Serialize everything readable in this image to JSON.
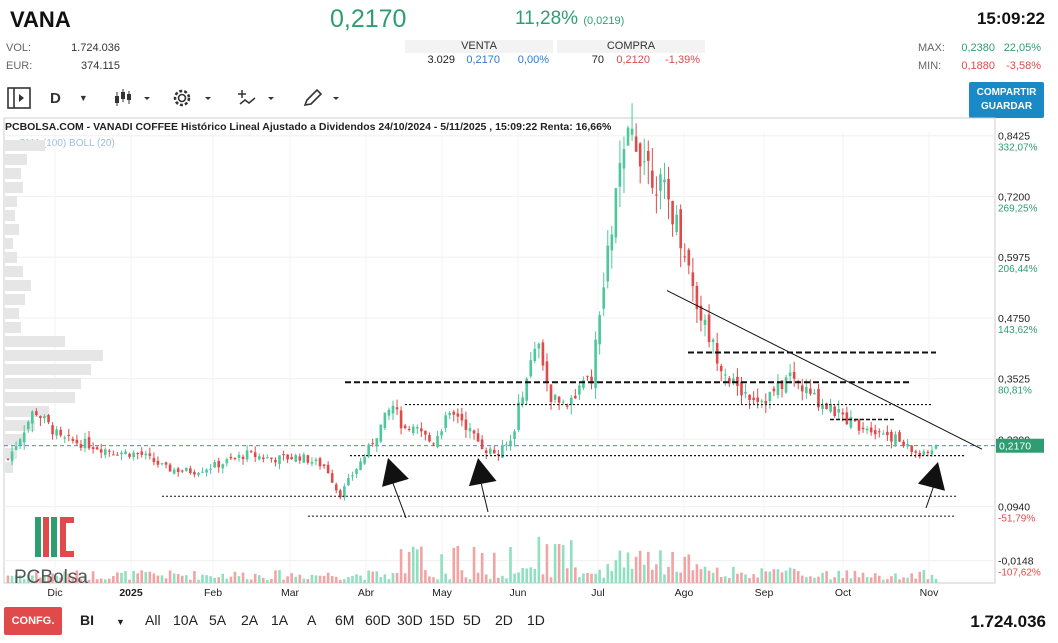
{
  "header": {
    "ticker": "VANA",
    "last_price": "0,2170",
    "change_pct": "11,28%",
    "change_abs": "(0,0219)",
    "time": "15:09:22",
    "vol_label": "VOL:",
    "vol_value": "1.724.036",
    "eur_label": "EUR:",
    "eur_value": "374.115",
    "max_label": "MAX:",
    "max_value": "0,2380",
    "max_pct": "22,05%",
    "min_label": "MIN:",
    "min_value": "0,1880",
    "min_pct": "-3,58%"
  },
  "orderbook": {
    "sell_label": "VENTA",
    "buy_label": "COMPRA",
    "sell_qty": "3.029",
    "sell_price": "0,2170",
    "sell_pct": "0,00%",
    "buy_qty": "70",
    "buy_price": "0,2120",
    "buy_pct": "-1,39%"
  },
  "toolbar": {
    "period": "D",
    "share_line1": "COMPARTIR",
    "share_line2": "GUARDAR",
    "icons": [
      "panel-toggle-icon",
      "candlestick-icon",
      "gear-icon",
      "drawing-tools-icon",
      "pencil-icon"
    ]
  },
  "chart_title": "PCBOLSA.COM - VANADI COFFEE Histórico Lineal Ajustado a Dividendos 24/10/2024 - 5/11/2025 , 15:09:22 Renta: 16,66%",
  "indicators": "SMA (100)  BOLL (20)",
  "footer": {
    "config": "CONFG.",
    "mode": "BI",
    "timeframes": [
      "All",
      "10A",
      "5A",
      "2A",
      "1A",
      "A",
      "6M",
      "60D",
      "30D",
      "15D",
      "5D",
      "2D",
      "1D"
    ],
    "volume": "1.724.036"
  },
  "chart_data": {
    "type": "candlestick",
    "title": "",
    "x_tick_labels": [
      "Dic",
      "2025",
      "Feb",
      "Mar",
      "Abr",
      "May",
      "Jun",
      "Jul",
      "Ago",
      "Sep",
      "Oct",
      "Nov"
    ],
    "y_ticks": [
      {
        "value": 0.8425,
        "label": "0,8425",
        "pct": "332,07%"
      },
      {
        "value": 0.72,
        "label": "0,7200",
        "pct": "269,25%"
      },
      {
        "value": 0.5975,
        "label": "0,5975",
        "pct": "206,44%"
      },
      {
        "value": 0.475,
        "label": "0,4750",
        "pct": "143,62%"
      },
      {
        "value": 0.3525,
        "label": "0,3525",
        "pct": "80,81%"
      },
      {
        "value": 0.23,
        "label": "0,2300",
        "pct": ""
      },
      {
        "value": 0.094,
        "label": "0,0940",
        "pct": "-51,79%"
      },
      {
        "value": -0.0148,
        "label": "-0,0148",
        "pct": "-107,62%"
      }
    ],
    "ylim": [
      -0.06,
      0.85
    ],
    "current_price": 0.217,
    "current_price_label": "0,2170",
    "colors": {
      "up": "#4cc89a",
      "down": "#e04a4a",
      "price_tag": "#2e9e72"
    },
    "close_path": [
      [
        0,
        0.19
      ],
      [
        2,
        0.29
      ],
      [
        4,
        0.23
      ],
      [
        6,
        0.22
      ],
      [
        8,
        0.205
      ],
      [
        10,
        0.2
      ],
      [
        12,
        0.17
      ],
      [
        14,
        0.165
      ],
      [
        16,
        0.18
      ],
      [
        18,
        0.2
      ],
      [
        20,
        0.19
      ],
      [
        22,
        0.195
      ],
      [
        24,
        0.175
      ],
      [
        25,
        0.115
      ],
      [
        26,
        0.16
      ],
      [
        27,
        0.2
      ],
      [
        28,
        0.25
      ],
      [
        29,
        0.3
      ],
      [
        30,
        0.24
      ],
      [
        31,
        0.25
      ],
      [
        32,
        0.22
      ],
      [
        33,
        0.27
      ],
      [
        34,
        0.28
      ],
      [
        35,
        0.24
      ],
      [
        36,
        0.21
      ],
      [
        37,
        0.2
      ],
      [
        38,
        0.23
      ],
      [
        39,
        0.35
      ],
      [
        40,
        0.42
      ],
      [
        41,
        0.31
      ],
      [
        42,
        0.3
      ],
      [
        43,
        0.33
      ],
      [
        44,
        0.35
      ],
      [
        45,
        0.55
      ],
      [
        46,
        0.75
      ],
      [
        47,
        0.85
      ],
      [
        48,
        0.8
      ],
      [
        49,
        0.75
      ],
      [
        50,
        0.7
      ],
      [
        51,
        0.62
      ],
      [
        52,
        0.5
      ],
      [
        53,
        0.43
      ],
      [
        54,
        0.37
      ],
      [
        55,
        0.33
      ],
      [
        56,
        0.32
      ],
      [
        57,
        0.31
      ],
      [
        58,
        0.33
      ],
      [
        59,
        0.36
      ],
      [
        60,
        0.33
      ],
      [
        61,
        0.31
      ],
      [
        62,
        0.29
      ],
      [
        63,
        0.275
      ],
      [
        64,
        0.26
      ],
      [
        65,
        0.255
      ],
      [
        66,
        0.245
      ],
      [
        67,
        0.23
      ],
      [
        68,
        0.21
      ],
      [
        69,
        0.195
      ],
      [
        70,
        0.217
      ]
    ],
    "volume_profile_levels": 24,
    "annotations": [
      "descending trendline",
      "dashed horizontal levels",
      "three arrows"
    ]
  }
}
